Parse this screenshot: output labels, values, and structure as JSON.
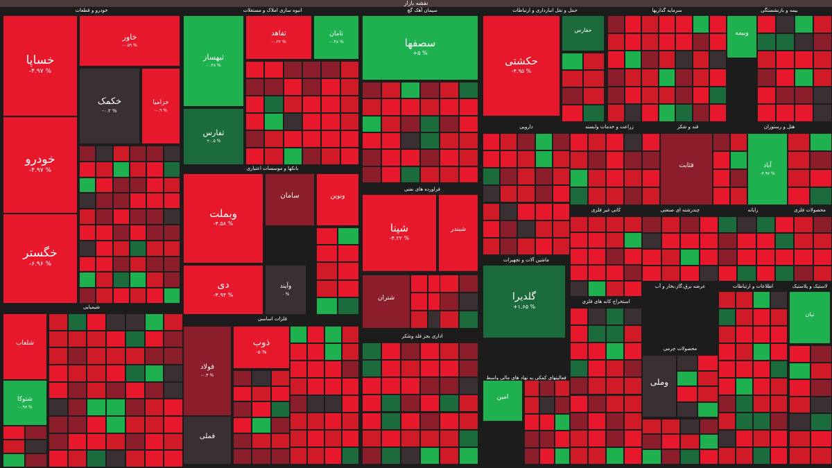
{
  "title": "نقشه بازار",
  "colors": {
    "strong_red": "#e8182c",
    "red": "#d01a28",
    "dark_red": "#8b1e2a",
    "neutral": "#3a2f33",
    "green": "#1fb050",
    "dark_green": "#1b6b3c"
  },
  "sectors": [
    {
      "name": "خودرو و قطعات"
    },
    {
      "name": "انبوه سازی املاک و مستغلات"
    },
    {
      "name": "سیمان آهک گچ"
    },
    {
      "name": "حمل و نقل انبارداری و ارتباطات"
    },
    {
      "name": "سرمایه گذاریها"
    },
    {
      "name": "بیمه و بازنشستگی"
    },
    {
      "name": "بانکها و موسسات اعتباری"
    },
    {
      "name": "دارویی"
    },
    {
      "name": "زراعت و خدمات وابسته"
    },
    {
      "name": "قند و شکر"
    },
    {
      "name": "هتل و رستوران"
    },
    {
      "name": "فراورده های نفتی"
    },
    {
      "name": "کانی غیر فلزی"
    },
    {
      "name": "چندرشته ای صنعتی"
    },
    {
      "name": "رایانه"
    },
    {
      "name": "محصولات فلزی"
    },
    {
      "name": "ماشین آلات و تجهیزات"
    },
    {
      "name": "شیمیایی"
    },
    {
      "name": "فلزات اساسی"
    },
    {
      "name": "اداری بجز فلد وشکر"
    },
    {
      "name": "عرضه برق،گاز،بخار و آب"
    },
    {
      "name": "اطلاعات و ارتباطات"
    },
    {
      "name": "لاستیک و پلاستیک"
    },
    {
      "name": "فعالیتهای کمکی به نهاد های مالی واسط"
    },
    {
      "name": "محصولات چرمی"
    },
    {
      "name": "استخراج کانه های فلزی"
    }
  ],
  "chart_data": {
    "type": "treemap",
    "title": "نقشه بازار",
    "tiles": [
      {
        "symbol": "خساپا",
        "change": "-۴.۹۷ %",
        "color": "strong_red"
      },
      {
        "symbol": "خاور",
        "change": "-۰.۵۹ %",
        "color": "strong_red"
      },
      {
        "symbol": "خکمک",
        "change": "-۰.۲ %",
        "color": "neutral"
      },
      {
        "symbol": "خزامیا",
        "change": "-۰.۹ %",
        "color": "strong_red"
      },
      {
        "symbol": "خودرو",
        "change": "-۴.۹۷ %",
        "color": "strong_red"
      },
      {
        "symbol": "خگستر",
        "change": "-۶.۹۶ %",
        "color": "strong_red"
      },
      {
        "symbol": "ثبهساز",
        "change": "-۰.۴۸ %",
        "color": "green"
      },
      {
        "symbol": "ثفاهد",
        "change": "-۰.۲۲ %",
        "color": "strong_red"
      },
      {
        "symbol": "ثامان",
        "change": "-۰.۴۸ %",
        "color": "green"
      },
      {
        "symbol": "ثفارس",
        "change": "+۰.۵ %",
        "color": "dark_green"
      },
      {
        "symbol": "سصفها",
        "change": "+۵ %",
        "color": "green"
      },
      {
        "symbol": "حکشتی",
        "change": "-۴.۹۵ %",
        "color": "strong_red"
      },
      {
        "symbol": "حفارس",
        "change": "",
        "color": "dark_green"
      },
      {
        "symbol": "وبملت",
        "change": "-۴.۵۸ %",
        "color": "strong_red"
      },
      {
        "symbol": "سامان",
        "change": "",
        "color": "dark_red"
      },
      {
        "symbol": "ونوین",
        "change": "",
        "color": "strong_red"
      },
      {
        "symbol": "دی",
        "change": "-۴.۹۴ %",
        "color": "strong_red"
      },
      {
        "symbol": "وآیند",
        "change": "۰ %",
        "color": "neutral"
      },
      {
        "symbol": "شپنا",
        "change": "-۴.۲۲ %",
        "color": "strong_red"
      },
      {
        "symbol": "شبندر",
        "change": "",
        "color": "strong_red"
      },
      {
        "symbol": "شتران",
        "change": "",
        "color": "dark_red"
      },
      {
        "symbol": "گلدیرا",
        "change": "+۱.۶۵ %",
        "color": "dark_green"
      },
      {
        "symbol": "شلعاب",
        "change": "",
        "color": "strong_red"
      },
      {
        "symbol": "شتوکا",
        "change": "-۰.۹۷ %",
        "color": "green"
      },
      {
        "symbol": "فولاد",
        "change": "-۰.۴ %",
        "color": "dark_red"
      },
      {
        "symbol": "ذوب",
        "change": "-۵ %",
        "color": "strong_red"
      },
      {
        "symbol": "فملی",
        "change": "",
        "color": "neutral"
      },
      {
        "symbol": "وملی",
        "change": "",
        "color": "neutral"
      },
      {
        "symbol": "آباد",
        "change": "-۴.۹۷ %",
        "color": "green"
      },
      {
        "symbol": "قثابت",
        "change": "",
        "color": "dark_red"
      },
      {
        "symbol": "وبیمه",
        "change": "",
        "color": "green"
      },
      {
        "symbol": "امین",
        "change": "",
        "color": "green"
      },
      {
        "symbol": "نیان",
        "change": "",
        "color": "green"
      }
    ]
  }
}
